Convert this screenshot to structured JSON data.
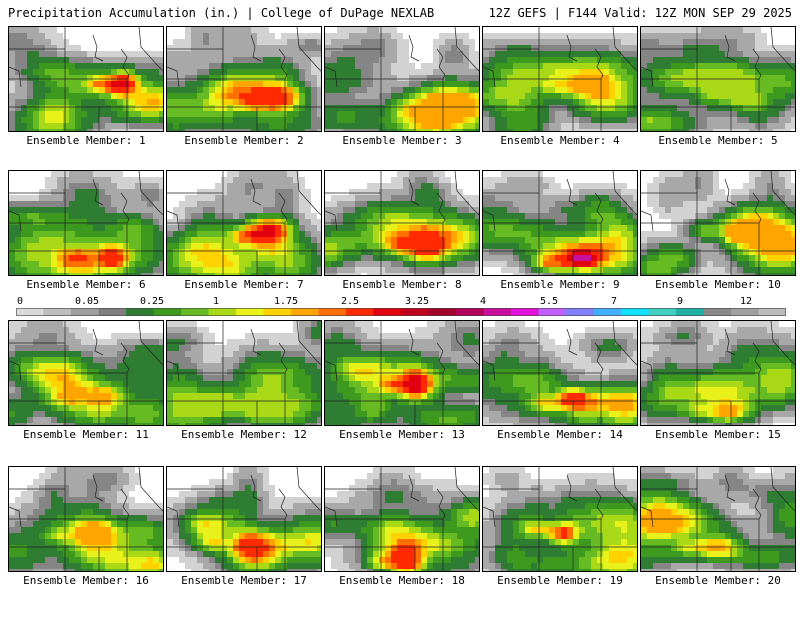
{
  "header": {
    "left_title": "Precipitation Accumulation (in.) | College of DuPage NEXLAB",
    "right_title": "12Z GEFS | F144 Valid: 12Z MON SEP 29 2025"
  },
  "caption_prefix": "Ensemble Member:",
  "members": [
    {
      "label": "Ensemble Member: 1",
      "max_inches": 3.25
    },
    {
      "label": "Ensemble Member: 2",
      "max_inches": 3.0
    },
    {
      "label": "Ensemble Member: 3",
      "max_inches": 1.75
    },
    {
      "label": "Ensemble Member: 4",
      "max_inches": 1.75
    },
    {
      "label": "Ensemble Member: 5",
      "max_inches": 1.0
    },
    {
      "label": "Ensemble Member: 6",
      "max_inches": 2.5
    },
    {
      "label": "Ensemble Member: 7",
      "max_inches": 3.25
    },
    {
      "label": "Ensemble Member: 8",
      "max_inches": 2.5
    },
    {
      "label": "Ensemble Member: 9",
      "max_inches": 4.0
    },
    {
      "label": "Ensemble Member: 10",
      "max_inches": 1.75
    },
    {
      "label": "Ensemble Member: 11",
      "max_inches": 1.75
    },
    {
      "label": "Ensemble Member: 12",
      "max_inches": 1.0
    },
    {
      "label": "Ensemble Member: 13",
      "max_inches": 3.25
    },
    {
      "label": "Ensemble Member: 14",
      "max_inches": 2.5
    },
    {
      "label": "Ensemble Member: 15",
      "max_inches": 1.75
    },
    {
      "label": "Ensemble Member: 16",
      "max_inches": 1.75
    },
    {
      "label": "Ensemble Member: 17",
      "max_inches": 2.5
    },
    {
      "label": "Ensemble Member: 18",
      "max_inches": 3.0
    },
    {
      "label": "Ensemble Member: 19",
      "max_inches": 2.5
    },
    {
      "label": "Ensemble Member: 20",
      "max_inches": 1.75
    }
  ],
  "colorbar": {
    "labels": [
      "0",
      "0.05",
      "0.25",
      "1",
      "1.75",
      "2.5",
      "3.25",
      "4",
      "5.5",
      "7",
      "9",
      "12"
    ],
    "colors": [
      "#d9d9d9",
      "#bdbdbd",
      "#9e9e9e",
      "#7f7f7f",
      "#2e7d32",
      "#3d9a1e",
      "#66bb22",
      "#a8d816",
      "#e8f21a",
      "#ffd200",
      "#ffa500",
      "#ff7000",
      "#ff2a00",
      "#e00010",
      "#c0001a",
      "#a0002a",
      "#b0005c",
      "#c8109c",
      "#e010d8",
      "#c060ff",
      "#8080ff",
      "#40b0ff",
      "#10e0ff",
      "#40d0c0",
      "#20b0a0",
      "#8a8a8a",
      "#a0a0a0",
      "#bcbcbc"
    ]
  }
}
